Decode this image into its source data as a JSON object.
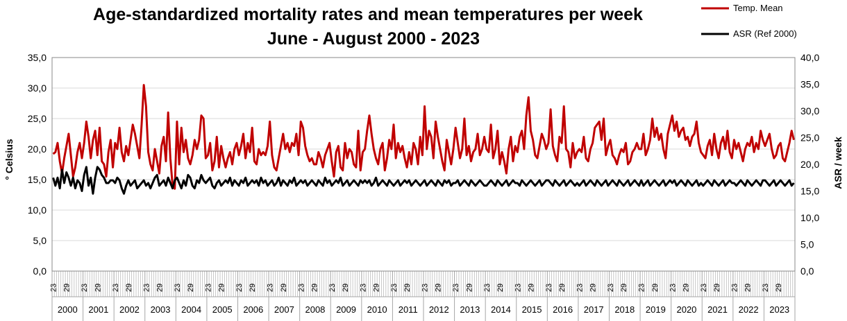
{
  "chart_data": {
    "type": "line",
    "title": "Age-standardized mortality rates and mean temperatures per week",
    "subtitle": "June - August  2000 - 2023",
    "ylabel_left": "° Celsius",
    "ylabel_right": "ASR / week",
    "ylim_left": [
      0,
      35
    ],
    "ylim_right": [
      0,
      40
    ],
    "yticks_left": [
      "0,0",
      "5,0",
      "10,0",
      "15,0",
      "20,0",
      "25,0",
      "30,0",
      "35,0"
    ],
    "yticks_right": [
      "0,0",
      "5,0",
      "10,0",
      "15,0",
      "20,0",
      "25,0",
      "30,0",
      "35,0",
      "40,0"
    ],
    "grid": true,
    "legend_position": "top-right",
    "week_labels": [
      "23",
      "29"
    ],
    "categories": [
      "2000",
      "2001",
      "2002",
      "2003",
      "2004",
      "2005",
      "2006",
      "2007",
      "2008",
      "2009",
      "2010",
      "2011",
      "2012",
      "2013",
      "2014",
      "2015",
      "2016",
      "2017",
      "2018",
      "2019",
      "2020",
      "2021",
      "2022",
      "2023"
    ],
    "series": [
      {
        "name": "Temp. Mean",
        "axis": "left",
        "color": "#c00000",
        "values": [
          [
            19.2,
            19.5,
            21.0,
            18.0,
            16.0,
            18.5,
            20.5,
            22.5,
            19.0,
            15.5,
            17.0,
            19.5,
            21.0,
            18.5
          ],
          [
            21.0,
            24.5,
            22.0,
            18.5,
            21.5,
            23.0,
            19.0,
            23.5,
            18.0,
            17.5,
            15.5,
            19.5,
            21.5,
            17.0
          ],
          [
            21.0,
            20.0,
            23.5,
            19.5,
            18.0,
            20.5,
            19.0,
            21.5,
            24.0,
            22.5,
            20.5,
            18.5,
            24.0,
            30.5
          ],
          [
            27.0,
            19.5,
            17.5,
            16.5,
            20.0,
            18.0,
            16.0,
            20.5,
            22.0,
            18.0,
            26.0,
            18.5,
            14.0,
            13.5
          ],
          [
            24.5,
            17.5,
            23.5,
            19.5,
            21.5,
            18.5,
            17.5,
            19.0,
            21.5,
            20.0,
            21.5,
            25.5,
            25.0,
            18.5
          ],
          [
            19.0,
            21.0,
            16.5,
            18.0,
            22.0,
            17.0,
            20.5,
            18.5,
            17.0,
            18.5,
            19.5,
            17.5,
            20.0,
            21.0
          ],
          [
            19.0,
            20.5,
            22.5,
            18.5,
            21.0,
            19.5,
            23.5,
            18.0,
            17.5,
            20.0,
            19.0,
            19.5,
            19.0,
            20.5
          ],
          [
            24.5,
            19.0,
            17.0,
            16.5,
            18.5,
            20.5,
            22.5,
            20.0,
            21.0,
            19.5,
            21.0,
            20.5,
            22.5,
            19.0
          ],
          [
            24.5,
            23.5,
            20.5,
            19.0,
            18.0,
            18.5,
            17.5,
            17.5,
            19.5,
            18.5,
            17.0,
            19.0,
            20.0,
            21.0
          ],
          [
            18.0,
            15.5,
            19.5,
            20.5,
            17.0,
            16.5,
            21.0,
            18.5,
            20.0,
            19.5,
            17.5,
            17.0,
            23.0,
            16.5
          ],
          [
            19.5,
            20.0,
            23.0,
            25.5,
            22.5,
            20.0,
            18.5,
            17.5,
            20.0,
            21.0,
            16.5,
            18.5,
            21.5,
            20.0
          ],
          [
            24.0,
            18.5,
            21.0,
            19.5,
            20.5,
            18.5,
            17.0,
            19.5,
            17.5,
            21.0,
            20.0,
            17.5,
            22.0,
            19.0
          ],
          [
            27.0,
            20.0,
            23.0,
            22.0,
            18.5,
            24.5,
            22.0,
            20.0,
            18.0,
            16.5,
            21.5,
            19.5,
            17.5,
            20.0
          ],
          [
            23.5,
            21.0,
            18.5,
            20.0,
            25.0,
            19.0,
            20.5,
            18.0,
            19.5,
            20.0,
            22.5,
            19.0,
            20.0,
            22.0
          ],
          [
            20.0,
            19.5,
            24.0,
            18.5,
            20.0,
            23.0,
            17.5,
            19.5,
            18.0,
            16.0,
            20.0,
            22.0,
            18.0,
            20.5
          ],
          [
            19.5,
            22.0,
            23.0,
            20.0,
            25.5,
            28.5,
            23.0,
            21.5,
            19.0,
            18.5,
            20.5,
            22.5,
            21.5,
            20.0
          ],
          [
            21.0,
            26.5,
            20.5,
            19.0,
            18.0,
            22.0,
            21.0,
            27.0,
            20.0,
            19.5,
            17.0,
            21.0,
            18.5,
            19.5
          ],
          [
            20.0,
            19.5,
            22.0,
            18.5,
            18.0,
            20.0,
            21.0,
            23.5,
            24.0,
            24.5,
            21.5,
            25.0,
            19.0,
            20.5
          ],
          [
            21.5,
            19.0,
            18.5,
            17.5,
            19.0,
            20.0,
            19.5,
            21.0,
            17.5,
            18.0,
            19.5,
            20.0,
            21.0,
            20.0
          ],
          [
            20.0,
            22.5,
            19.0,
            20.0,
            21.5,
            25.0,
            22.0,
            23.5,
            21.5,
            22.5,
            20.0,
            18.5,
            22.5,
            24.0
          ],
          [
            25.5,
            23.0,
            24.5,
            22.0,
            23.0,
            23.5,
            21.5,
            22.0,
            20.5,
            22.0,
            22.5,
            24.5,
            21.0,
            19.5
          ],
          [
            19.0,
            18.5,
            20.5,
            21.5,
            19.0,
            22.5,
            20.0,
            18.5,
            21.0,
            22.0,
            20.0,
            23.0,
            19.5,
            18.5
          ],
          [
            21.5,
            20.0,
            21.0,
            19.5,
            18.0,
            20.0,
            21.0,
            20.5,
            22.0,
            19.5,
            21.0,
            20.0,
            23.0,
            21.5
          ],
          [
            20.5,
            21.5,
            22.5,
            20.0,
            18.5,
            19.0,
            20.5,
            21.0,
            18.5,
            18.0,
            19.5,
            21.0,
            23.0,
            21.5
          ]
        ]
      },
      {
        "name": "ASR (Ref 2000)",
        "axis": "right",
        "color": "#000000",
        "values": [
          [
            17.5,
            16.0,
            17.5,
            15.5,
            19.0,
            16.5,
            18.5,
            17.5,
            16.0,
            17.5,
            15.5,
            17.0,
            16.5,
            15.0
          ],
          [
            18.0,
            19.5,
            16.0,
            17.5,
            14.5,
            17.5,
            19.5,
            19.0,
            18.0,
            17.5,
            16.5,
            16.5,
            17.0,
            17.0
          ],
          [
            16.5,
            17.5,
            17.0,
            15.5,
            14.5,
            16.0,
            17.0,
            16.0,
            16.5,
            17.0,
            15.5,
            16.0,
            16.5,
            17.0
          ],
          [
            16.0,
            16.5,
            15.5,
            16.5,
            17.5,
            18.0,
            16.0,
            16.5,
            17.0,
            16.0,
            17.5,
            16.5,
            15.5,
            17.0
          ],
          [
            17.5,
            16.5,
            15.5,
            17.0,
            16.0,
            18.0,
            17.5,
            16.0,
            15.5,
            17.0,
            16.5,
            18.0,
            17.0,
            16.5
          ],
          [
            17.0,
            17.5,
            16.0,
            15.5,
            16.5,
            17.0,
            16.0,
            16.5,
            17.0,
            16.5,
            17.5,
            16.0,
            17.0,
            16.5
          ],
          [
            16.0,
            17.0,
            16.5,
            17.5,
            16.0,
            16.5,
            17.0,
            16.5,
            17.0,
            16.0,
            17.5,
            16.5,
            17.0,
            16.0
          ],
          [
            16.5,
            17.0,
            16.0,
            16.5,
            17.5,
            16.0,
            17.0,
            16.5,
            16.0,
            17.0,
            16.5,
            17.5,
            16.0,
            16.5
          ],
          [
            17.0,
            16.5,
            17.0,
            16.0,
            16.5,
            17.0,
            16.5,
            16.0,
            17.0,
            16.5,
            16.0,
            17.5,
            16.5,
            17.0
          ],
          [
            16.0,
            16.5,
            17.0,
            16.5,
            17.5,
            16.0,
            16.5,
            17.0,
            16.0,
            16.5,
            17.0,
            16.5,
            16.0,
            17.0
          ],
          [
            16.5,
            17.0,
            16.5,
            17.0,
            16.0,
            16.5,
            17.5,
            16.0,
            16.5,
            17.0,
            16.5,
            16.0,
            17.0,
            16.5
          ],
          [
            16.0,
            16.5,
            17.0,
            16.0,
            16.5,
            17.0,
            16.5,
            17.0,
            16.0,
            16.5,
            17.0,
            16.5,
            16.0,
            16.5
          ],
          [
            17.0,
            16.0,
            16.5,
            17.0,
            16.5,
            16.0,
            17.0,
            16.5,
            16.0,
            17.0,
            16.5,
            17.0,
            16.0,
            16.5
          ],
          [
            16.5,
            17.0,
            16.0,
            16.5,
            17.0,
            16.5,
            16.0,
            17.0,
            16.5,
            16.0,
            16.5,
            17.0,
            16.5,
            16.0
          ],
          [
            16.0,
            16.5,
            17.0,
            16.5,
            16.0,
            17.0,
            16.5,
            16.0,
            16.5,
            17.0,
            16.0,
            16.5,
            17.0,
            16.5
          ],
          [
            16.5,
            16.0,
            17.0,
            16.5,
            16.0,
            16.5,
            17.0,
            16.5,
            16.0,
            16.5,
            17.0,
            16.0,
            16.5,
            17.0
          ],
          [
            17.0,
            16.5,
            16.0,
            17.0,
            16.5,
            16.0,
            16.5,
            17.0,
            16.0,
            16.5,
            17.0,
            16.5,
            16.0,
            16.5
          ],
          [
            16.0,
            16.5,
            17.0,
            16.0,
            16.5,
            17.0,
            16.5,
            16.0,
            17.0,
            16.5,
            16.0,
            16.5,
            17.0,
            16.0
          ],
          [
            16.5,
            17.0,
            16.5,
            16.0,
            17.0,
            16.5,
            16.0,
            16.5,
            17.0,
            16.0,
            16.5,
            17.0,
            16.5,
            16.0
          ],
          [
            17.0,
            16.0,
            16.5,
            17.0,
            16.0,
            16.5,
            17.0,
            16.5,
            16.0,
            16.5,
            17.0,
            16.0,
            16.5,
            17.0
          ],
          [
            16.5,
            17.0,
            16.0,
            16.5,
            17.0,
            16.5,
            16.0,
            17.0,
            16.5,
            16.0,
            16.5,
            17.0,
            16.0,
            16.5
          ],
          [
            16.0,
            16.5,
            17.0,
            16.5,
            16.0,
            17.0,
            16.5,
            16.0,
            16.5,
            17.0,
            16.0,
            16.5,
            17.0,
            16.5
          ],
          [
            16.5,
            16.0,
            16.5,
            17.0,
            16.5,
            16.0,
            17.0,
            16.5,
            16.0,
            16.5,
            17.0,
            16.5,
            16.0,
            17.0
          ],
          [
            17.0,
            16.5,
            16.0,
            16.5,
            17.0,
            16.0,
            16.5,
            17.0,
            16.5,
            16.0,
            16.5,
            17.0,
            16.0,
            16.5
          ]
        ]
      }
    ]
  }
}
